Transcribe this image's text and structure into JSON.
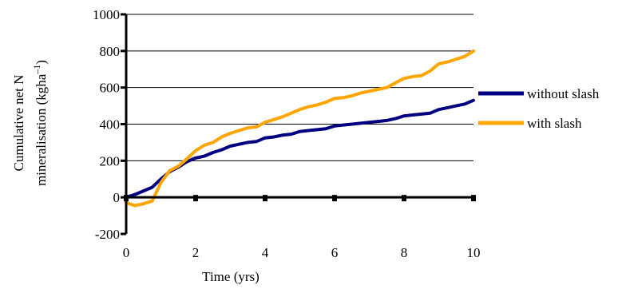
{
  "chart_data": {
    "type": "line",
    "xlabel": "Time (yrs)",
    "ylabel_line1": "Cumulative net N",
    "ylabel_line2": "mineralisation (kgha",
    "ylabel_sup": "–1",
    "ylabel_end": ")",
    "xlim": [
      0,
      10
    ],
    "ylim": [
      -200,
      1000
    ],
    "xticks": [
      0,
      2,
      4,
      6,
      8,
      10
    ],
    "yticks": [
      -200,
      0,
      200,
      400,
      600,
      800,
      1000
    ],
    "grid": "horizontal",
    "legend_position": "right",
    "series": [
      {
        "name": "without slash",
        "color": "#000080",
        "x": [
          0,
          0.25,
          0.5,
          0.75,
          1.0,
          1.25,
          1.5,
          1.75,
          2.0,
          2.25,
          2.5,
          2.75,
          3.0,
          3.25,
          3.5,
          3.75,
          4.0,
          4.25,
          4.5,
          4.75,
          5.0,
          5.25,
          5.5,
          5.75,
          6.0,
          6.25,
          6.5,
          6.75,
          7.0,
          7.25,
          7.5,
          7.75,
          8.0,
          8.25,
          8.5,
          8.75,
          9.0,
          9.25,
          9.5,
          9.75,
          10.0
        ],
        "y": [
          0,
          15,
          35,
          55,
          100,
          140,
          165,
          195,
          215,
          225,
          245,
          260,
          280,
          290,
          300,
          305,
          325,
          330,
          340,
          345,
          360,
          365,
          370,
          375,
          390,
          395,
          400,
          405,
          410,
          415,
          420,
          430,
          445,
          450,
          455,
          460,
          480,
          490,
          500,
          510,
          530
        ]
      },
      {
        "name": "with slash",
        "color": "#FFA500",
        "x": [
          0,
          0.25,
          0.5,
          0.75,
          1.0,
          1.25,
          1.5,
          1.75,
          2.0,
          2.25,
          2.5,
          2.75,
          3.0,
          3.25,
          3.5,
          3.75,
          4.0,
          4.25,
          4.5,
          4.75,
          5.0,
          5.25,
          5.5,
          5.75,
          6.0,
          6.25,
          6.5,
          6.75,
          7.0,
          7.25,
          7.5,
          7.75,
          8.0,
          8.25,
          8.5,
          8.75,
          9.0,
          9.25,
          9.5,
          9.75,
          10.0
        ],
        "y": [
          -30,
          -45,
          -35,
          -20,
          80,
          145,
          170,
          210,
          255,
          285,
          300,
          330,
          350,
          365,
          380,
          385,
          410,
          425,
          440,
          460,
          480,
          495,
          505,
          520,
          540,
          545,
          555,
          570,
          580,
          590,
          600,
          625,
          650,
          660,
          665,
          690,
          730,
          740,
          755,
          770,
          800
        ]
      }
    ]
  }
}
